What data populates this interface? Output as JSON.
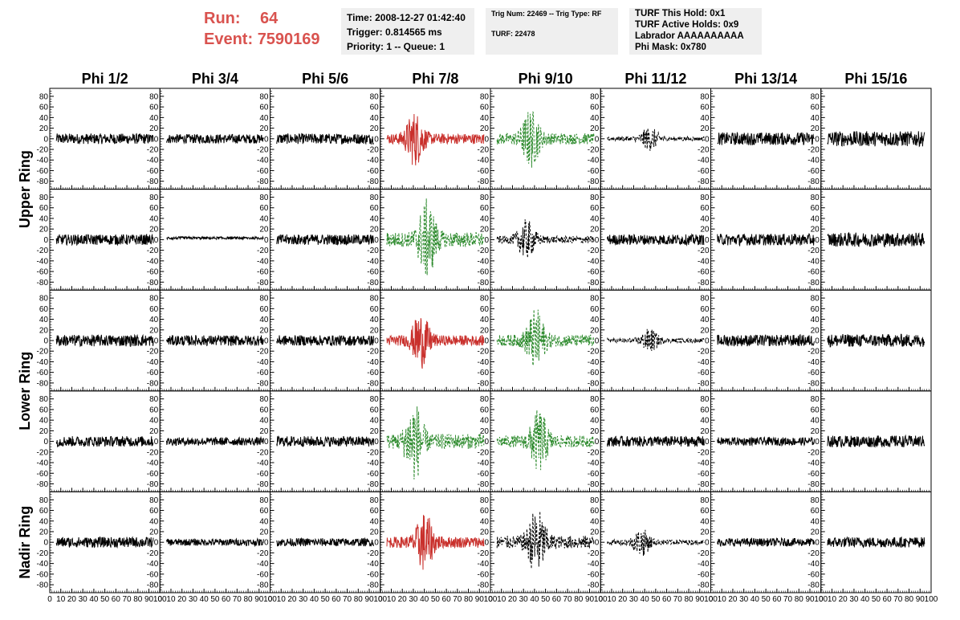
{
  "header": {
    "run_label": "Run:",
    "run_value": "64",
    "event_label": "Event:",
    "event_value": "7590169"
  },
  "info_box_1": {
    "time": "Time: 2008-12-27 01:42:40",
    "trigger": "Trigger: 0.814565 ms",
    "priority": "Priority: 1 -- Queue: 1"
  },
  "info_box_2": {
    "trig": "Trig Num: 22469 -- Trig Type: RF",
    "turf": "TURF: 22478"
  },
  "info_box_3": {
    "hold": "TURF This Hold: 0x1",
    "active": "TURF Active Holds: 0x9",
    "labrador": "Labrador AAAAAAAAAA",
    "mask": "Phi Mask: 0x780"
  },
  "colors": {
    "normal": "#000000",
    "triggered": "#c9302c",
    "masked": "#2e8b2e"
  },
  "chart_data": {
    "type": "line",
    "columns": [
      "Phi 1/2",
      "Phi 3/4",
      "Phi 5/6",
      "Phi 7/8",
      "Phi 9/10",
      "Phi 11/12",
      "Phi 13/14",
      "Phi 15/16"
    ],
    "ring_labels": [
      "Upper Ring",
      "Lower Ring",
      "Nadir Ring"
    ],
    "ylim": [
      -95,
      95
    ],
    "xlim": [
      0,
      100
    ],
    "y_ticks": [
      "80",
      "60",
      "40",
      "20",
      "0",
      "-20",
      "-40",
      "-60",
      "-80"
    ],
    "x_ticks": [
      "0",
      "10",
      "20",
      "30",
      "40",
      "50",
      "60",
      "70",
      "80",
      "90",
      "100"
    ],
    "panel_styles": [
      [
        "solid",
        "solid",
        "solid",
        "red",
        "dashed-green",
        "dashed-black",
        "solid",
        "solid"
      ],
      [
        "solid",
        "flat",
        "solid",
        "dashed-green",
        "dashed-black",
        "solid",
        "solid",
        "solid"
      ],
      [
        "solid",
        "solid",
        "solid",
        "red",
        "dashed-green",
        "dashed-black",
        "solid",
        "solid"
      ],
      [
        "solid",
        "solid",
        "solid",
        "dashed-green",
        "dashed-green",
        "solid",
        "solid",
        "solid"
      ],
      [
        "solid",
        "solid",
        "solid",
        "red",
        "dashed-black",
        "dashed-black",
        "solid",
        "solid"
      ]
    ],
    "panel_amplitudes": [
      [
        18,
        16,
        18,
        28,
        30,
        12,
        22,
        26
      ],
      [
        18,
        3,
        18,
        40,
        20,
        18,
        20,
        24
      ],
      [
        20,
        18,
        18,
        28,
        32,
        12,
        20,
        22
      ],
      [
        18,
        14,
        18,
        40,
        32,
        18,
        14,
        20
      ],
      [
        18,
        12,
        14,
        30,
        35,
        14,
        14,
        18
      ]
    ]
  }
}
